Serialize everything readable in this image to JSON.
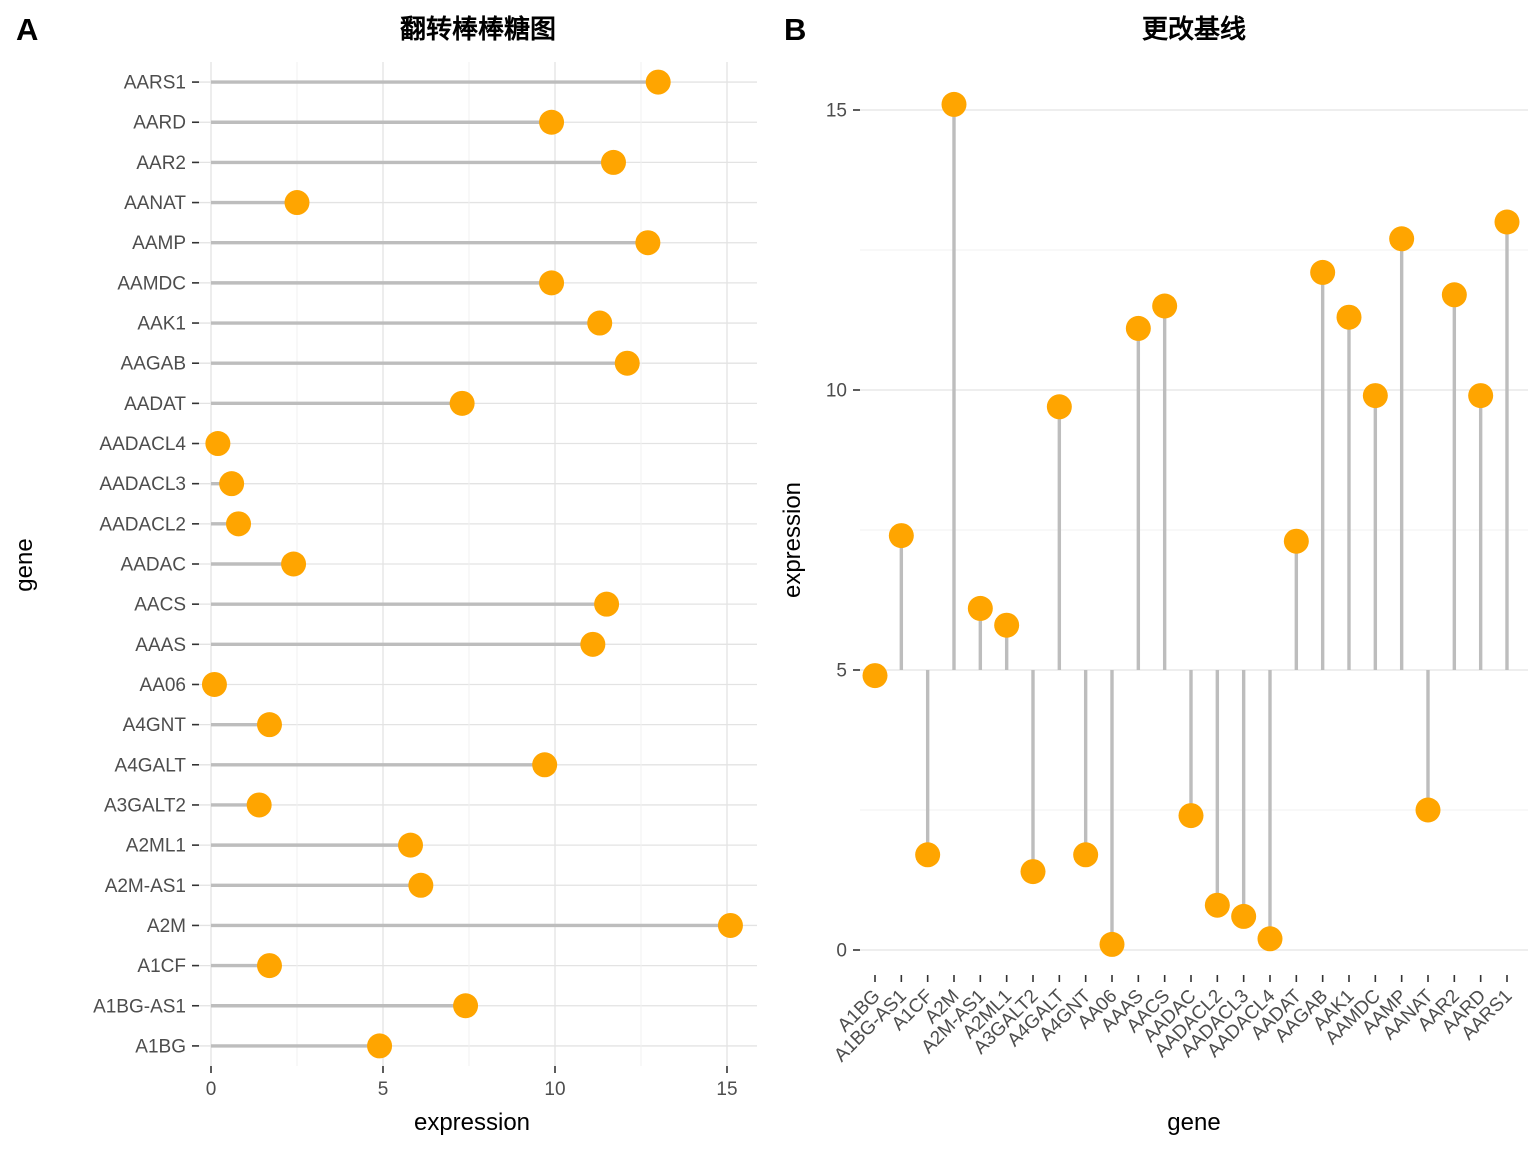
{
  "panels": {
    "a": {
      "tag": "A",
      "title": "翻转棒棒糖图",
      "xlabel": "expression",
      "ylabel": "gene"
    },
    "b": {
      "tag": "B",
      "title": "更改基线",
      "xlabel": "gene",
      "ylabel": "expression"
    }
  },
  "colors": {
    "dot": "#FFA500",
    "stem": "#BDBDBD",
    "grid_major": "#E3E3E3",
    "grid_minor": "#F1F1F1",
    "tick_text": "#4d4d4d",
    "tick_mark": "#333333"
  },
  "chart_data": [
    {
      "type": "lollipop-horizontal",
      "title": "翻转棒棒糖图",
      "xlabel": "expression",
      "ylabel": "gene",
      "baseline": 0,
      "xticks": [
        0,
        5,
        10,
        15
      ],
      "xgrid_minor": [
        2.5,
        7.5,
        12.5
      ],
      "xlim": [
        -0.4,
        15.9
      ],
      "grid": "both",
      "categories": [
        "AARS1",
        "AARD",
        "AAR2",
        "AANAT",
        "AAMP",
        "AAMDC",
        "AAK1",
        "AAGAB",
        "AADAT",
        "AADACL4",
        "AADACL3",
        "AADACL2",
        "AADAC",
        "AACS",
        "AAAS",
        "AA06",
        "A4GNT",
        "A4GALT",
        "A3GALT2",
        "A2ML1",
        "A2M-AS1",
        "A2M",
        "A1CF",
        "A1BG-AS1",
        "A1BG"
      ],
      "values": [
        13.0,
        9.9,
        11.7,
        2.5,
        12.7,
        9.9,
        11.3,
        12.1,
        7.3,
        0.2,
        0.6,
        0.8,
        2.4,
        11.5,
        11.1,
        0.1,
        1.7,
        9.7,
        1.4,
        5.8,
        6.1,
        15.1,
        1.7,
        7.4,
        4.9
      ]
    },
    {
      "type": "lollipop-vertical",
      "title": "更改基线",
      "xlabel": "gene",
      "ylabel": "expression",
      "baseline": 5,
      "yticks": [
        0,
        5,
        10,
        15
      ],
      "ygrid_minor": [
        2.5,
        7.5,
        12.5
      ],
      "ylim": [
        -0.45,
        15.9
      ],
      "grid": "y-only",
      "x_label_angle": -45,
      "categories": [
        "A1BG",
        "A1BG-AS1",
        "A1CF",
        "A2M",
        "A2M-AS1",
        "A2ML1",
        "A3GALT2",
        "A4GALT",
        "A4GNT",
        "AA06",
        "AAAS",
        "AACS",
        "AADAC",
        "AADACL2",
        "AADACL3",
        "AADACL4",
        "AADAT",
        "AAGAB",
        "AAK1",
        "AAMDC",
        "AAMP",
        "AANAT",
        "AAR2",
        "AARD",
        "AARS1"
      ],
      "values": [
        4.9,
        7.4,
        1.7,
        15.1,
        6.1,
        5.8,
        1.4,
        9.7,
        1.7,
        0.1,
        11.1,
        11.5,
        2.4,
        0.8,
        0.6,
        0.2,
        7.3,
        12.1,
        11.3,
        9.9,
        12.7,
        2.5,
        11.7,
        9.9,
        13.0
      ]
    }
  ]
}
